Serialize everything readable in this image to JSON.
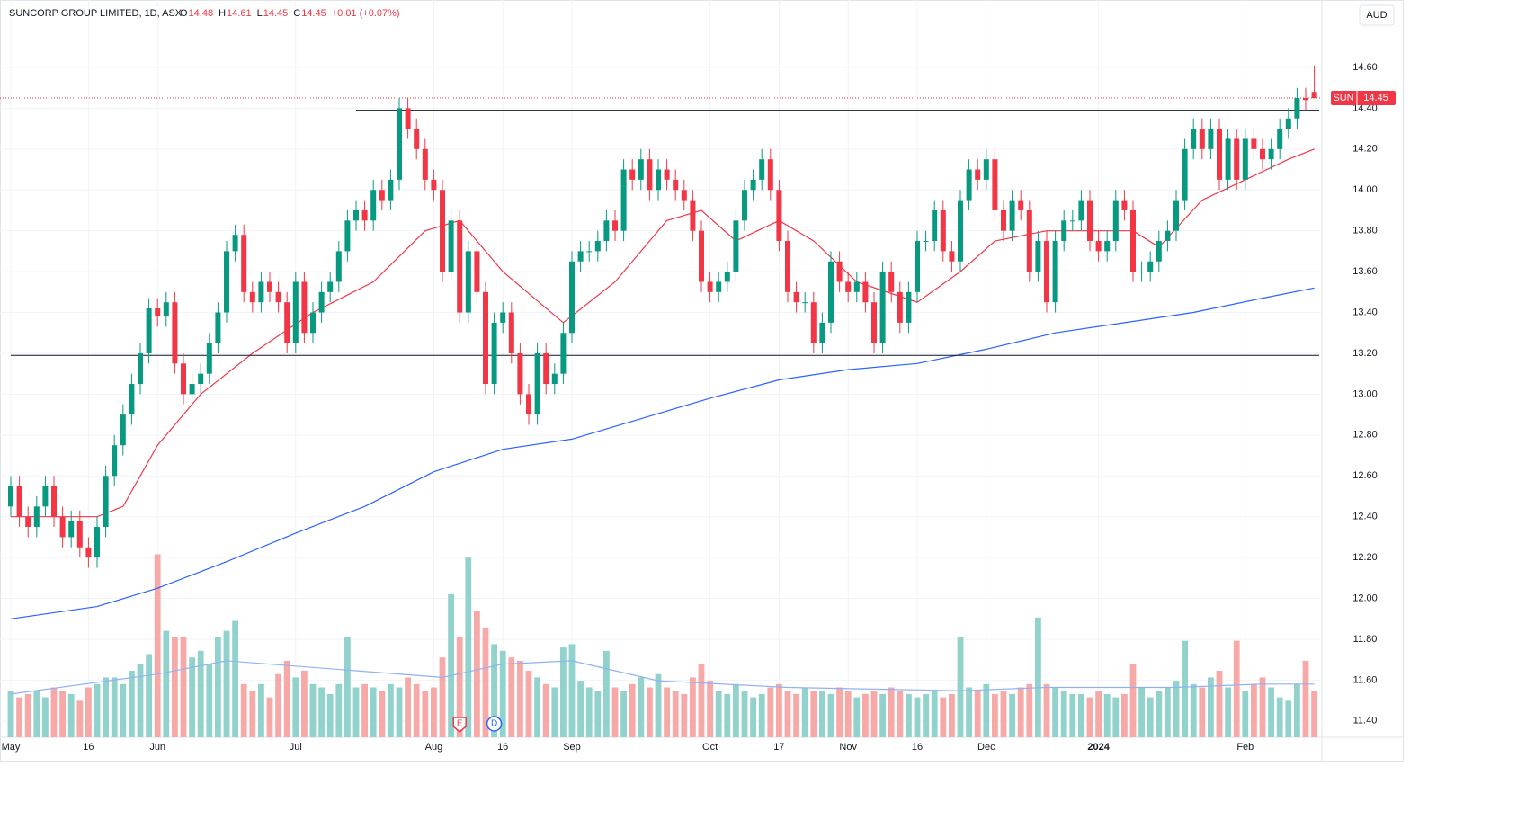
{
  "chart_data": {
    "type": "candlestick",
    "title": "SUNCORP GROUP LIMITED, 1D, ASX",
    "ohlc_labels": [
      "O",
      "H",
      "L",
      "C"
    ],
    "change": "+0.01 (+0.07%)",
    "currency": "AUD",
    "symbol": "SUN",
    "up_color": "#089981",
    "down_color": "#f23645",
    "volume_up_color": "#92d2cc",
    "volume_down_color": "#f7a9a7",
    "grid": true,
    "ylim": [
      11.32,
      14.93
    ],
    "yticks": [
      {
        "value": 11.4,
        "label": "11.40"
      },
      {
        "value": 11.6,
        "label": "11.60"
      },
      {
        "value": 11.8,
        "label": "11.80"
      },
      {
        "value": 12.0,
        "label": "12.00"
      },
      {
        "value": 12.2,
        "label": "12.20"
      },
      {
        "value": 12.4,
        "label": "12.40"
      },
      {
        "value": 12.6,
        "label": "12.60"
      },
      {
        "value": 12.8,
        "label": "12.80"
      },
      {
        "value": 13.0,
        "label": "13.00"
      },
      {
        "value": 13.2,
        "label": "13.20"
      },
      {
        "value": 13.4,
        "label": "13.40"
      },
      {
        "value": 13.6,
        "label": "13.60"
      },
      {
        "value": 13.8,
        "label": "13.80"
      },
      {
        "value": 14.0,
        "label": "14.00"
      },
      {
        "value": 14.2,
        "label": "14.20"
      },
      {
        "value": 14.4,
        "label": "14.40"
      },
      {
        "value": 14.6,
        "label": "14.60"
      }
    ],
    "vlim": [
      0,
      6
    ],
    "categories": [
      "May",
      null,
      null,
      null,
      null,
      null,
      null,
      null,
      null,
      "16",
      null,
      null,
      null,
      null,
      null,
      null,
      null,
      "Jun",
      null,
      null,
      null,
      null,
      null,
      null,
      null,
      null,
      null,
      null,
      null,
      null,
      null,
      null,
      null,
      "Jul",
      null,
      null,
      null,
      null,
      null,
      null,
      null,
      null,
      null,
      null,
      null,
      null,
      null,
      null,
      null,
      "Aug",
      null,
      null,
      null,
      null,
      null,
      null,
      null,
      "16",
      null,
      null,
      null,
      null,
      null,
      null,
      null,
      "Sep",
      null,
      null,
      null,
      null,
      null,
      null,
      null,
      null,
      null,
      null,
      null,
      null,
      null,
      null,
      null,
      "Oct",
      null,
      null,
      null,
      null,
      null,
      null,
      null,
      "17",
      null,
      null,
      null,
      null,
      null,
      null,
      null,
      "Nov",
      null,
      null,
      null,
      null,
      null,
      null,
      null,
      "16",
      null,
      null,
      null,
      null,
      null,
      null,
      null,
      "Dec",
      null,
      null,
      null,
      null,
      null,
      null,
      null,
      null,
      null,
      null,
      null,
      null,
      "2024",
      null,
      null,
      null,
      null,
      null,
      null,
      null,
      null,
      null,
      null,
      null,
      null,
      null,
      null,
      null,
      null,
      "Feb",
      null,
      null,
      null,
      null,
      null,
      null,
      null,
      null
    ],
    "open": [
      12.45,
      12.55,
      12.4,
      12.35,
      12.45,
      12.55,
      12.4,
      12.3,
      12.38,
      12.25,
      12.2,
      12.35,
      12.6,
      12.75,
      12.9,
      13.05,
      13.2,
      13.42,
      13.38,
      13.45,
      13.15,
      13.0,
      13.05,
      13.1,
      13.25,
      13.4,
      13.7,
      13.78,
      13.5,
      13.45,
      13.55,
      13.5,
      13.45,
      13.25,
      13.55,
      13.3,
      13.4,
      13.5,
      13.55,
      13.7,
      13.85,
      13.9,
      13.85,
      14.0,
      13.95,
      14.05,
      14.4,
      14.3,
      14.2,
      14.05,
      14.0,
      13.6,
      13.85,
      13.4,
      13.7,
      13.5,
      13.05,
      13.35,
      13.4,
      13.2,
      13.0,
      12.9,
      13.2,
      13.05,
      13.1,
      13.3,
      13.65,
      13.7,
      13.7,
      13.75,
      13.85,
      13.8,
      14.1,
      14.05,
      14.15,
      14.0,
      14.1,
      14.05,
      14.0,
      13.95,
      13.8,
      13.55,
      13.5,
      13.55,
      13.6,
      13.85,
      14.0,
      14.05,
      14.15,
      14.0,
      13.75,
      13.5,
      13.45,
      13.45,
      13.25,
      13.35,
      13.65,
      13.55,
      13.5,
      13.55,
      13.45,
      13.25,
      13.6,
      13.5,
      13.35,
      13.5,
      13.75,
      13.75,
      13.9,
      13.7,
      13.65,
      13.95,
      14.1,
      14.05,
      14.15,
      13.9,
      13.8,
      13.95,
      13.9,
      13.6,
      13.75,
      13.45,
      13.75,
      13.85,
      13.85,
      13.95,
      13.75,
      13.7,
      13.75,
      13.95,
      13.9,
      13.6,
      13.6,
      13.65,
      13.75,
      13.8,
      13.95,
      14.2,
      14.3,
      14.2,
      14.3,
      14.05,
      14.25,
      14.05,
      14.25,
      14.2,
      14.15,
      14.2,
      14.3,
      14.35,
      14.45,
      14.48
    ],
    "high": [
      12.6,
      12.6,
      12.45,
      12.5,
      12.6,
      12.6,
      12.45,
      12.43,
      12.43,
      12.3,
      12.4,
      12.65,
      12.8,
      12.95,
      13.1,
      13.25,
      13.47,
      13.47,
      13.5,
      13.5,
      13.2,
      13.1,
      13.15,
      13.3,
      13.45,
      13.75,
      13.83,
      13.83,
      13.55,
      13.6,
      13.6,
      13.55,
      13.5,
      13.6,
      13.6,
      13.45,
      13.55,
      13.6,
      13.75,
      13.9,
      13.95,
      13.95,
      14.05,
      14.05,
      14.1,
      14.45,
      14.45,
      14.35,
      14.25,
      14.1,
      14.05,
      13.9,
      13.9,
      13.75,
      13.75,
      13.55,
      13.4,
      13.45,
      13.45,
      13.25,
      13.05,
      13.25,
      13.25,
      13.15,
      13.35,
      13.7,
      13.75,
      13.75,
      13.8,
      13.9,
      13.9,
      14.15,
      14.15,
      14.2,
      14.2,
      14.15,
      14.15,
      14.1,
      14.05,
      14.0,
      13.85,
      13.6,
      13.6,
      13.65,
      13.9,
      14.05,
      14.1,
      14.2,
      14.2,
      14.05,
      13.8,
      13.55,
      13.5,
      13.5,
      13.4,
      13.7,
      13.7,
      13.6,
      13.6,
      13.6,
      13.5,
      13.65,
      13.65,
      13.55,
      13.55,
      13.8,
      13.8,
      13.95,
      13.95,
      13.75,
      14.0,
      14.15,
      14.15,
      14.2,
      14.2,
      13.95,
      14.0,
      14.0,
      13.95,
      13.8,
      13.8,
      13.8,
      13.9,
      13.9,
      14.0,
      14.0,
      13.8,
      13.8,
      14.0,
      14.0,
      13.95,
      13.65,
      13.7,
      13.8,
      13.85,
      14.0,
      14.25,
      14.35,
      14.35,
      14.35,
      14.35,
      14.3,
      14.3,
      14.3,
      14.3,
      14.25,
      14.25,
      14.35,
      14.4,
      14.5,
      14.5,
      14.61
    ],
    "low": [
      12.4,
      12.35,
      12.3,
      12.3,
      12.4,
      12.35,
      12.25,
      12.25,
      12.2,
      12.15,
      12.15,
      12.3,
      12.55,
      12.7,
      12.85,
      13.0,
      13.15,
      13.33,
      13.33,
      13.1,
      12.95,
      12.95,
      13.0,
      13.05,
      13.2,
      13.35,
      13.65,
      13.45,
      13.4,
      13.4,
      13.45,
      13.4,
      13.2,
      13.2,
      13.25,
      13.25,
      13.35,
      13.45,
      13.5,
      13.65,
      13.8,
      13.8,
      13.8,
      13.9,
      13.9,
      14.0,
      14.25,
      14.15,
      14.0,
      13.95,
      13.55,
      13.55,
      13.35,
      13.35,
      13.45,
      13.0,
      13.0,
      13.3,
      13.15,
      12.95,
      12.85,
      12.85,
      13.0,
      13.0,
      13.05,
      13.25,
      13.6,
      13.65,
      13.65,
      13.7,
      13.75,
      13.75,
      14.0,
      14.0,
      13.95,
      13.95,
      14.0,
      13.95,
      13.9,
      13.75,
      13.5,
      13.45,
      13.45,
      13.5,
      13.55,
      13.8,
      13.95,
      14.0,
      13.95,
      13.7,
      13.45,
      13.4,
      13.4,
      13.2,
      13.2,
      13.3,
      13.5,
      13.45,
      13.45,
      13.4,
      13.2,
      13.2,
      13.45,
      13.3,
      13.3,
      13.45,
      13.7,
      13.7,
      13.65,
      13.6,
      13.6,
      13.9,
      14.0,
      14.0,
      13.85,
      13.75,
      13.75,
      13.85,
      13.55,
      13.55,
      13.4,
      13.4,
      13.7,
      13.8,
      13.8,
      13.7,
      13.65,
      13.65,
      13.7,
      13.85,
      13.55,
      13.55,
      13.55,
      13.6,
      13.7,
      13.75,
      13.9,
      14.15,
      14.15,
      14.15,
      14.0,
      14.0,
      14.0,
      14.0,
      14.15,
      14.1,
      14.1,
      14.15,
      14.25,
      14.3,
      14.39,
      14.45
    ],
    "close": [
      12.55,
      12.4,
      12.35,
      12.45,
      12.55,
      12.4,
      12.3,
      12.38,
      12.25,
      12.2,
      12.35,
      12.6,
      12.75,
      12.9,
      13.05,
      13.2,
      13.42,
      13.38,
      13.45,
      13.15,
      13.0,
      13.05,
      13.1,
      13.25,
      13.4,
      13.7,
      13.78,
      13.5,
      13.45,
      13.55,
      13.5,
      13.45,
      13.25,
      13.55,
      13.3,
      13.4,
      13.5,
      13.55,
      13.7,
      13.85,
      13.9,
      13.85,
      14.0,
      13.95,
      14.05,
      14.4,
      14.3,
      14.2,
      14.05,
      14.0,
      13.6,
      13.85,
      13.4,
      13.7,
      13.5,
      13.05,
      13.35,
      13.4,
      13.2,
      13.0,
      12.9,
      13.2,
      13.05,
      13.1,
      13.3,
      13.65,
      13.7,
      13.7,
      13.75,
      13.85,
      13.8,
      14.1,
      14.05,
      14.15,
      14.0,
      14.1,
      14.05,
      14.0,
      13.95,
      13.8,
      13.55,
      13.5,
      13.55,
      13.6,
      13.85,
      14.0,
      14.05,
      14.15,
      14.0,
      13.75,
      13.5,
      13.45,
      13.45,
      13.25,
      13.35,
      13.65,
      13.55,
      13.5,
      13.55,
      13.45,
      13.25,
      13.6,
      13.5,
      13.35,
      13.5,
      13.75,
      13.75,
      13.9,
      13.7,
      13.65,
      13.95,
      14.1,
      14.05,
      14.15,
      13.9,
      13.8,
      13.95,
      13.9,
      13.6,
      13.75,
      13.45,
      13.75,
      13.85,
      13.85,
      13.95,
      13.75,
      13.7,
      13.75,
      13.95,
      13.9,
      13.6,
      13.6,
      13.65,
      13.75,
      13.8,
      13.95,
      14.2,
      14.3,
      14.2,
      14.3,
      14.05,
      14.25,
      14.05,
      14.25,
      14.2,
      14.15,
      14.2,
      14.3,
      14.35,
      14.45,
      14.44,
      14.45
    ],
    "volume": [
      1.4,
      1.2,
      1.3,
      1.4,
      1.2,
      1.5,
      1.4,
      1.3,
      1.1,
      1.5,
      1.6,
      1.8,
      1.8,
      1.6,
      2.0,
      2.2,
      2.5,
      5.5,
      3.2,
      3.0,
      3.0,
      2.4,
      2.6,
      2.2,
      3.0,
      3.2,
      3.5,
      1.6,
      1.4,
      1.6,
      1.2,
      1.9,
      2.3,
      1.8,
      2.0,
      1.6,
      1.5,
      1.3,
      1.6,
      3.0,
      1.5,
      1.6,
      1.5,
      1.4,
      1.6,
      1.5,
      1.8,
      1.6,
      1.4,
      1.5,
      2.4,
      4.3,
      3.0,
      5.4,
      3.8,
      3.3,
      2.8,
      2.6,
      2.4,
      2.3,
      2.0,
      1.8,
      1.6,
      1.5,
      2.7,
      2.8,
      1.7,
      1.5,
      1.4,
      2.6,
      1.5,
      1.4,
      1.6,
      1.8,
      1.5,
      1.9,
      1.5,
      1.4,
      1.3,
      1.8,
      2.2,
      1.7,
      1.4,
      1.3,
      1.6,
      1.4,
      1.2,
      1.3,
      1.5,
      1.6,
      1.4,
      1.3,
      1.5,
      1.4,
      1.4,
      1.3,
      1.5,
      1.4,
      1.2,
      1.3,
      1.4,
      1.3,
      1.5,
      1.4,
      1.3,
      1.2,
      1.3,
      1.4,
      1.2,
      1.3,
      3.0,
      1.5,
      1.4,
      1.6,
      1.3,
      1.4,
      1.3,
      1.5,
      1.6,
      3.6,
      1.6,
      1.5,
      1.4,
      1.3,
      1.3,
      1.2,
      1.4,
      1.3,
      1.2,
      1.3,
      2.2,
      1.5,
      1.2,
      1.4,
      1.5,
      1.7,
      2.9,
      1.6,
      1.5,
      1.8,
      2.0,
      1.5,
      2.9,
      1.4,
      1.6,
      1.8,
      1.5,
      1.2,
      1.1,
      1.6,
      2.3,
      1.4
    ],
    "lines": [
      {
        "color": "#f23645",
        "axis": "price",
        "x": [
          0,
          10,
          13,
          17,
          22,
          28,
          35,
          42,
          48,
          52,
          57,
          64,
          70,
          76,
          80,
          84,
          89,
          93,
          98,
          105,
          110,
          114,
          120,
          125,
          130,
          133,
          138,
          143,
          148,
          151
        ],
        "values": [
          12.4,
          12.4,
          12.45,
          12.75,
          13.0,
          13.2,
          13.4,
          13.55,
          13.8,
          13.85,
          13.6,
          13.35,
          13.55,
          13.85,
          13.9,
          13.75,
          13.85,
          13.75,
          13.55,
          13.45,
          13.6,
          13.75,
          13.8,
          13.8,
          13.8,
          13.72,
          13.95,
          14.05,
          14.15,
          14.2
        ]
      },
      {
        "color": "#2962ff",
        "axis": "price",
        "x": [
          0,
          10,
          17,
          25,
          33,
          41,
          49,
          57,
          65,
          73,
          81,
          89,
          97,
          105,
          113,
          121,
          129,
          137,
          145,
          151
        ],
        "values": [
          11.9,
          11.96,
          12.05,
          12.18,
          12.32,
          12.45,
          12.62,
          12.73,
          12.78,
          12.88,
          12.98,
          13.07,
          13.12,
          13.15,
          13.22,
          13.3,
          13.35,
          13.4,
          13.47,
          13.52
        ]
      },
      {
        "color": "#8fb2f5",
        "axis": "volume",
        "x": [
          0,
          17,
          25,
          40,
          50,
          57,
          65,
          75,
          90,
          110,
          120,
          135,
          145,
          151
        ],
        "values": [
          1.3,
          1.9,
          2.3,
          2.0,
          1.8,
          2.2,
          2.3,
          1.7,
          1.5,
          1.4,
          1.5,
          1.5,
          1.6,
          1.6
        ]
      }
    ],
    "levels": [
      {
        "value": 14.39,
        "from": 40
      },
      {
        "value": 13.19,
        "from": 0
      }
    ],
    "events": [
      {
        "index": 52,
        "label": "E",
        "color": "#f23645"
      },
      {
        "index": 56,
        "label": "D",
        "color": "#2962ff"
      }
    ]
  }
}
